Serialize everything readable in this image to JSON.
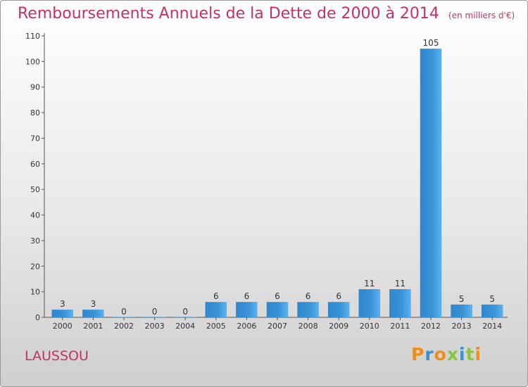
{
  "chart_data": {
    "type": "bar",
    "title": "Remboursements Annuels de la Dette de 2000 à 2014",
    "subtitle": "(en milliers d'€)",
    "categories": [
      "2000",
      "2001",
      "2002",
      "2003",
      "2004",
      "2005",
      "2006",
      "2007",
      "2008",
      "2009",
      "2010",
      "2011",
      "2012",
      "2013",
      "2014"
    ],
    "values": [
      3,
      3,
      0,
      0,
      0,
      6,
      6,
      6,
      6,
      6,
      11,
      11,
      105,
      5,
      5
    ],
    "ylim": [
      0,
      110
    ],
    "yticks": [
      0,
      10,
      20,
      30,
      40,
      50,
      60,
      70,
      80,
      90,
      100,
      110
    ],
    "bar_color": "#3a94d8",
    "grid": false,
    "legend": "none"
  },
  "commune": "LAUSSOU",
  "logo": {
    "text": "Proxiti",
    "letter_colors": [
      "#f08c1e",
      "#3b8fd4",
      "#f08c1e",
      "#8cc63e",
      "#3b8fd4",
      "#8cc63e",
      "#f08c1e"
    ]
  }
}
